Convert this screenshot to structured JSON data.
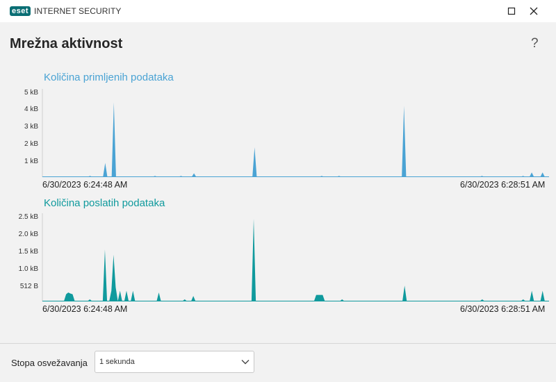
{
  "window": {
    "brand": "eset",
    "product": "INTERNET SECURITY"
  },
  "page": {
    "title": "Mrežna aktivnost",
    "help": "?"
  },
  "colors": {
    "received": "#4aa3d4",
    "sent": "#109a9d"
  },
  "chart_data": [
    {
      "type": "area",
      "title": "Količina primljenih podataka",
      "x_start_label": "6/30/2023 6:24:48 AM",
      "x_end_label": "6/30/2023 6:28:51 AM",
      "y_ticks": [
        "5 kB",
        "4 kB",
        "3 kB",
        "2 kB",
        "1 kB"
      ],
      "ylim": [
        0,
        5
      ],
      "y_unit": "kB",
      "grid": false,
      "values": [
        0,
        0,
        0,
        0,
        0,
        0,
        0,
        0,
        0,
        0,
        0,
        0,
        0,
        0,
        0,
        0,
        0,
        0,
        0,
        0,
        0,
        0,
        0.05,
        0,
        0,
        0,
        0,
        0,
        0,
        0.8,
        0,
        0,
        0,
        4.3,
        0,
        0,
        0,
        0,
        0,
        0,
        0,
        0,
        0,
        0,
        0,
        0,
        0,
        0,
        0,
        0,
        0,
        0,
        0.05,
        0,
        0,
        0,
        0,
        0,
        0,
        0,
        0,
        0,
        0,
        0,
        0.05,
        0,
        0,
        0,
        0,
        0,
        0.2,
        0,
        0,
        0,
        0,
        0,
        0,
        0,
        0,
        0,
        0,
        0,
        0,
        0,
        0,
        0,
        0,
        0,
        0,
        0,
        0,
        0,
        0,
        0,
        0,
        0,
        0,
        0,
        1.7,
        0,
        0,
        0,
        0,
        0,
        0,
        0,
        0,
        0,
        0,
        0,
        0,
        0,
        0,
        0,
        0,
        0,
        0,
        0,
        0,
        0,
        0,
        0,
        0,
        0,
        0,
        0,
        0,
        0,
        0,
        0.05,
        0,
        0,
        0,
        0,
        0,
        0,
        0,
        0.05,
        0,
        0,
        0,
        0,
        0,
        0,
        0,
        0,
        0,
        0,
        0,
        0,
        0,
        0,
        0,
        0,
        0,
        0,
        0,
        0,
        0,
        0,
        0,
        0,
        0,
        0,
        0,
        0,
        0,
        4.1,
        0,
        0,
        0,
        0,
        0,
        0,
        0,
        0,
        0,
        0,
        0,
        0,
        0,
        0,
        0,
        0,
        0,
        0,
        0,
        0,
        0,
        0,
        0,
        0,
        0,
        0,
        0,
        0,
        0,
        0,
        0,
        0,
        0,
        0,
        0,
        0.05,
        0,
        0,
        0,
        0,
        0,
        0,
        0,
        0,
        0,
        0,
        0,
        0,
        0,
        0,
        0,
        0,
        0,
        0,
        0.05,
        0,
        0,
        0,
        0.25,
        0,
        0,
        0,
        0,
        0.25,
        0,
        0,
        0
      ]
    },
    {
      "type": "area",
      "title": "Količina poslatih podataka",
      "x_start_label": "6/30/2023 6:24:48 AM",
      "x_end_label": "6/30/2023 6:28:51 AM",
      "y_ticks": [
        "2.5 kB",
        "2.0 kB",
        "1.5 kB",
        "1.0 kB",
        "512 B"
      ],
      "ylim": [
        0,
        2.5
      ],
      "y_unit": "kB",
      "grid": false,
      "values": [
        0,
        0,
        0,
        0,
        0,
        0,
        0,
        0,
        0,
        0,
        0,
        0.2,
        0.25,
        0.22,
        0.2,
        0,
        0,
        0,
        0,
        0,
        0,
        0,
        0.05,
        0,
        0,
        0,
        0,
        0,
        0,
        1.5,
        0,
        0,
        0.3,
        1.35,
        0.4,
        0,
        0.3,
        0,
        0,
        0.3,
        0,
        0,
        0.3,
        0,
        0,
        0,
        0,
        0,
        0,
        0,
        0,
        0,
        0,
        0,
        0.25,
        0,
        0,
        0,
        0,
        0,
        0,
        0,
        0,
        0,
        0,
        0,
        0.05,
        0,
        0,
        0,
        0.15,
        0,
        0,
        0,
        0,
        0,
        0,
        0,
        0,
        0,
        0,
        0,
        0,
        0,
        0,
        0,
        0,
        0,
        0,
        0,
        0,
        0,
        0,
        0,
        0,
        0,
        0,
        0,
        2.4,
        0,
        0,
        0,
        0,
        0,
        0,
        0,
        0,
        0,
        0,
        0,
        0,
        0,
        0,
        0,
        0,
        0,
        0,
        0,
        0,
        0,
        0,
        0,
        0,
        0,
        0,
        0,
        0,
        0.18,
        0.18,
        0.18,
        0.18,
        0,
        0,
        0,
        0,
        0,
        0,
        0,
        0,
        0.05,
        0,
        0,
        0,
        0,
        0,
        0,
        0,
        0,
        0,
        0,
        0,
        0,
        0,
        0,
        0,
        0,
        0,
        0,
        0,
        0,
        0,
        0,
        0,
        0,
        0,
        0,
        0,
        0,
        0.45,
        0,
        0,
        0,
        0,
        0,
        0,
        0,
        0,
        0,
        0,
        0,
        0,
        0,
        0,
        0,
        0,
        0,
        0,
        0,
        0,
        0,
        0,
        0,
        0,
        0,
        0,
        0,
        0,
        0,
        0,
        0,
        0,
        0,
        0,
        0,
        0.05,
        0,
        0,
        0,
        0,
        0,
        0,
        0,
        0,
        0,
        0,
        0,
        0,
        0,
        0,
        0,
        0,
        0,
        0,
        0.05,
        0,
        0,
        0,
        0.3,
        0,
        0,
        0,
        0,
        0.3,
        0,
        0,
        0
      ]
    }
  ],
  "footer": {
    "label": "Stopa osvežavanja",
    "select_value": "1 sekunda"
  }
}
